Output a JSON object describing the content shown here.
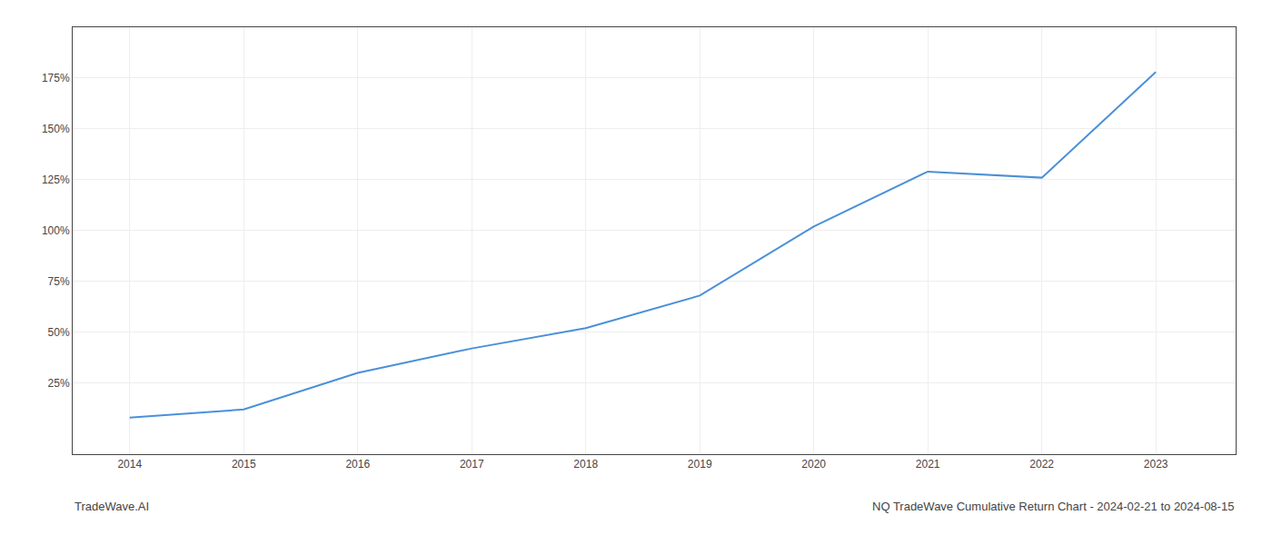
{
  "chart_data": {
    "type": "line",
    "x": [
      2014,
      2015,
      2016,
      2017,
      2018,
      2019,
      2020,
      2021,
      2022,
      2023
    ],
    "values": [
      8,
      12,
      30,
      42,
      52,
      68,
      102,
      129,
      126,
      178
    ],
    "color": "#4a90d9",
    "xlim": [
      2013.5,
      2023.7
    ],
    "xticks": [
      2014,
      2015,
      2016,
      2017,
      2018,
      2019,
      2020,
      2021,
      2022,
      2023
    ],
    "ylim": [
      -10,
      200
    ],
    "yticks": [
      {
        "value": 25,
        "label": "25%"
      },
      {
        "value": 50,
        "label": "50%"
      },
      {
        "value": 75,
        "label": "75%"
      },
      {
        "value": 100,
        "label": "100%"
      },
      {
        "value": 125,
        "label": "125%"
      },
      {
        "value": 150,
        "label": "150%"
      },
      {
        "value": 175,
        "label": "175%"
      }
    ],
    "grid": true,
    "annotations": [
      "TradeWave.AI",
      "NQ TradeWave Cumulative Return Chart - 2024-02-21 to 2024-08-15"
    ]
  }
}
